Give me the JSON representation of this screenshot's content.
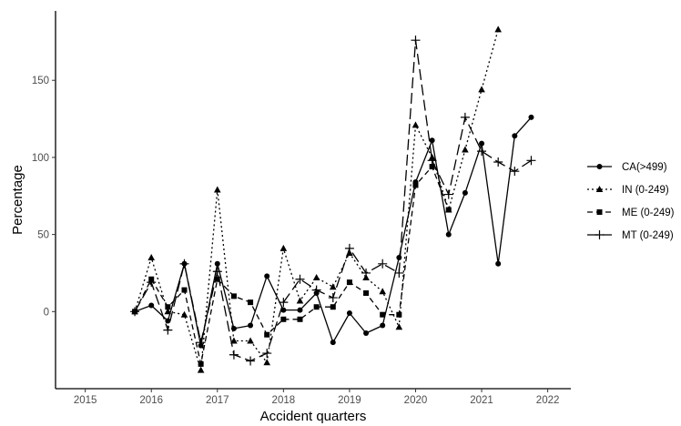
{
  "chart_data": {
    "type": "line",
    "title": "",
    "xlabel": "Accident quarters",
    "ylabel": "Percentage",
    "xlim": [
      2014.55,
      2022.35
    ],
    "ylim": [
      -50,
      195
    ],
    "x_ticks": [
      2015,
      2016,
      2017,
      2018,
      2019,
      2020,
      2021,
      2022
    ],
    "x_tick_labels": [
      "2015",
      "2016",
      "2017",
      "2018",
      "2019",
      "2020",
      "2021",
      "2022"
    ],
    "y_ticks": [
      0,
      50,
      100,
      150
    ],
    "y_tick_labels": [
      "0",
      "50",
      "100",
      "150"
    ],
    "grid": false,
    "legend_position": "right",
    "series": [
      {
        "name": "CA(>499)",
        "line_style": "solid",
        "marker": "circle",
        "points": [
          [
            2015.75,
            0
          ],
          [
            2016.0,
            4
          ],
          [
            2016.25,
            -6
          ],
          [
            2016.5,
            31
          ],
          [
            2016.75,
            -22
          ],
          [
            2017.0,
            31
          ],
          [
            2017.25,
            -11
          ],
          [
            2017.5,
            -9
          ],
          [
            2017.75,
            23
          ],
          [
            2018.0,
            1
          ],
          [
            2018.25,
            1
          ],
          [
            2018.5,
            12
          ],
          [
            2018.75,
            -20
          ],
          [
            2019.0,
            -1
          ],
          [
            2019.25,
            -14
          ],
          [
            2019.5,
            -9
          ],
          [
            2019.75,
            35
          ],
          [
            2020.0,
            84
          ],
          [
            2020.25,
            111
          ],
          [
            2020.5,
            50
          ],
          [
            2020.75,
            77
          ],
          [
            2021.0,
            109
          ],
          [
            2021.25,
            31
          ],
          [
            2021.5,
            114
          ],
          [
            2021.75,
            126
          ]
        ]
      },
      {
        "name": "IN (0-249)",
        "line_style": "dotted",
        "marker": "triangle",
        "points": [
          [
            2015.75,
            0
          ],
          [
            2016.0,
            35
          ],
          [
            2016.25,
            0
          ],
          [
            2016.5,
            -2
          ],
          [
            2016.75,
            -38
          ],
          [
            2017.0,
            79
          ],
          [
            2017.25,
            -19
          ],
          [
            2017.5,
            -19
          ],
          [
            2017.75,
            -33
          ],
          [
            2018.0,
            41
          ],
          [
            2018.25,
            7
          ],
          [
            2018.5,
            22
          ],
          [
            2018.75,
            16
          ],
          [
            2019.0,
            38
          ],
          [
            2019.25,
            22
          ],
          [
            2019.5,
            13
          ],
          [
            2019.75,
            -10
          ],
          [
            2020.0,
            121
          ],
          [
            2020.25,
            100
          ],
          [
            2020.5,
            66
          ],
          [
            2020.75,
            105
          ],
          [
            2021.0,
            144
          ],
          [
            2021.25,
            183
          ]
        ]
      },
      {
        "name": "ME (0-249)",
        "line_style": "dashed",
        "marker": "square",
        "points": [
          [
            2015.75,
            0
          ],
          [
            2016.0,
            21
          ],
          [
            2016.25,
            3
          ],
          [
            2016.5,
            14
          ],
          [
            2016.75,
            -34
          ],
          [
            2017.0,
            21
          ],
          [
            2017.25,
            10
          ],
          [
            2017.5,
            6
          ],
          [
            2017.75,
            -15
          ],
          [
            2018.0,
            -5
          ],
          [
            2018.25,
            -5
          ],
          [
            2018.5,
            3
          ],
          [
            2018.75,
            3
          ],
          [
            2019.0,
            19
          ],
          [
            2019.25,
            12
          ],
          [
            2019.5,
            -2
          ],
          [
            2019.75,
            -2
          ],
          [
            2020.0,
            82
          ],
          [
            2020.25,
            94
          ],
          [
            2020.5,
            66
          ]
        ]
      },
      {
        "name": "MT (0-249)",
        "line_style": "longdash",
        "marker": "plus",
        "points": [
          [
            2015.75,
            0
          ],
          [
            2016.0,
            19
          ],
          [
            2016.25,
            -12
          ],
          [
            2016.5,
            31
          ],
          [
            2016.75,
            -20
          ],
          [
            2017.0,
            26
          ],
          [
            2017.25,
            -28
          ],
          [
            2017.5,
            -32
          ],
          [
            2017.75,
            -27
          ],
          [
            2018.0,
            6
          ],
          [
            2018.25,
            21
          ],
          [
            2018.5,
            14
          ],
          [
            2018.75,
            9
          ],
          [
            2019.0,
            41
          ],
          [
            2019.25,
            25
          ],
          [
            2019.5,
            31
          ],
          [
            2019.75,
            25
          ],
          [
            2020.0,
            176
          ],
          [
            2020.25,
            98
          ],
          [
            2020.5,
            76
          ],
          [
            2020.75,
            126
          ],
          [
            2021.0,
            104
          ],
          [
            2021.25,
            97
          ],
          [
            2021.5,
            91
          ],
          [
            2021.75,
            98
          ]
        ]
      }
    ]
  }
}
